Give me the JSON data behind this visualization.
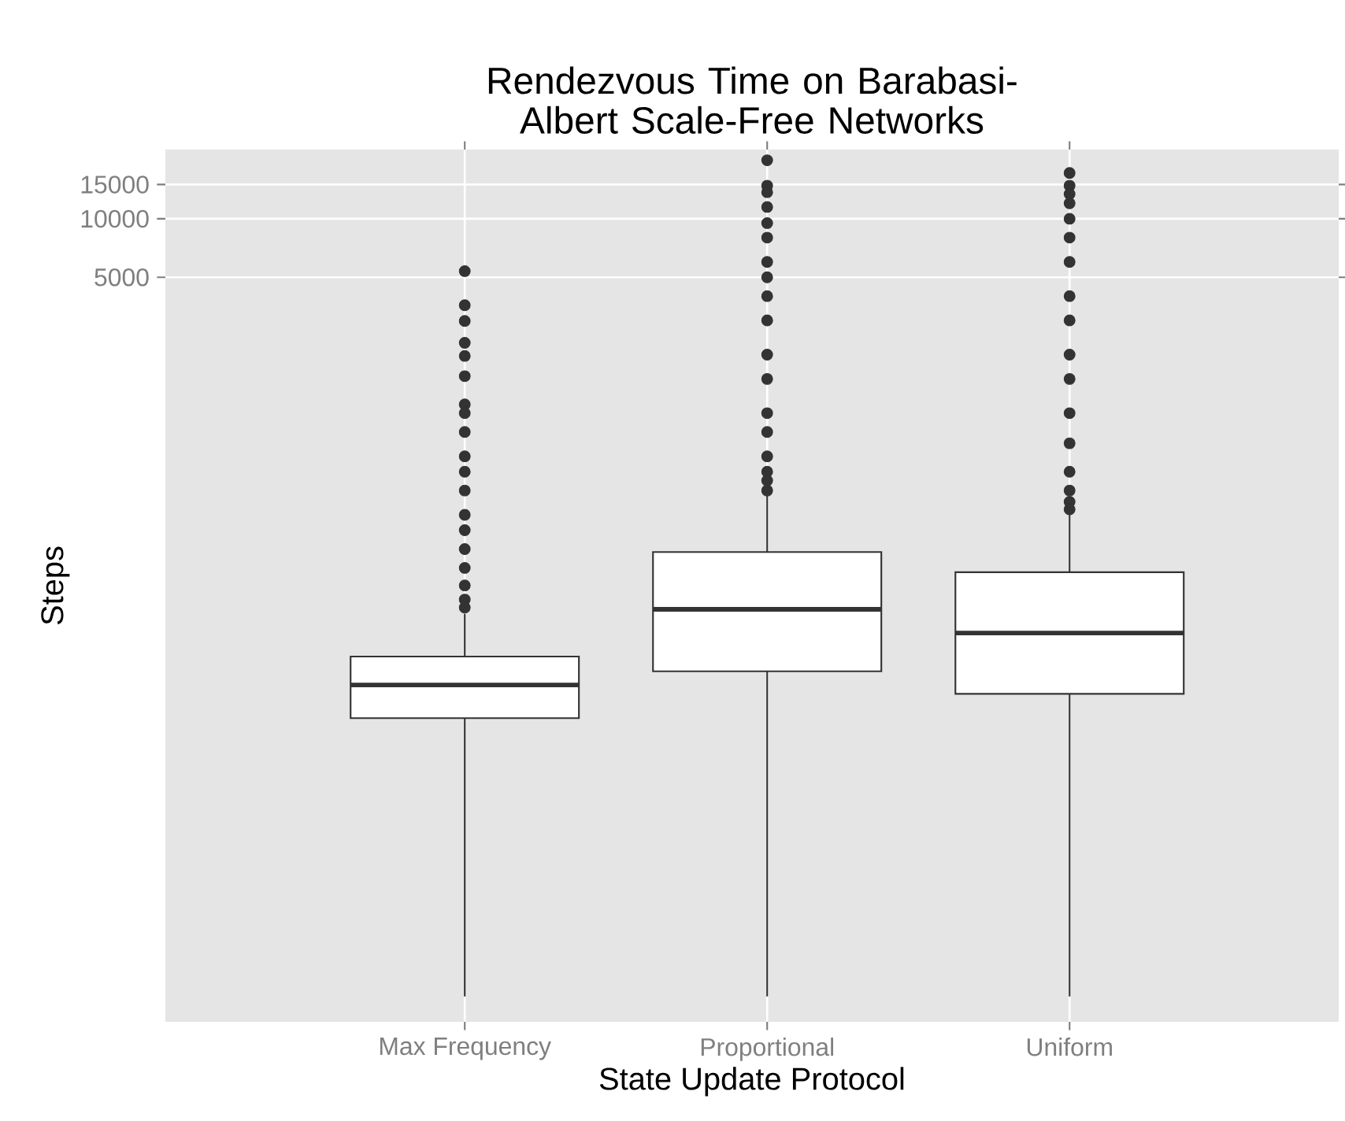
{
  "chart_data": {
    "type": "box",
    "title": "Rendezvous Time on Barabasi-Albert Scale-Free Networks",
    "xlabel": "State Update Protocol",
    "ylabel": "Steps",
    "categories": [
      "Max Frequency",
      "Proportional",
      "Uniform"
    ],
    "boxes": [
      {
        "low": 1,
        "q1": 27,
        "median": 40,
        "q3": 56,
        "high": 93,
        "outliers": [
          5380,
          3590,
          2980,
          2300,
          1970,
          1550,
          1110,
          1000,
          800,
          600,
          500,
          400,
          300,
          250,
          200,
          160,
          130,
          110,
          100
        ]
      },
      {
        "low": 1,
        "q1": 47,
        "median": 98,
        "q3": 193,
        "high": 382,
        "outliers": [
          20000,
          14800,
          13700,
          11500,
          9500,
          8000,
          6000,
          5000,
          4000,
          3000,
          2000,
          1500,
          1000,
          800,
          600,
          500,
          450,
          400
        ]
      },
      {
        "low": 1,
        "q1": 36,
        "median": 74,
        "q3": 152,
        "high": 305,
        "outliers": [
          17200,
          14800,
          13400,
          12000,
          10000,
          8000,
          6000,
          4000,
          3000,
          2000,
          1500,
          1000,
          700,
          500,
          400,
          350,
          320
        ]
      }
    ],
    "log": true,
    "ylim": [
      0.74,
      22700
    ],
    "yticks": [
      5000,
      10000,
      15000
    ],
    "grid": true
  }
}
